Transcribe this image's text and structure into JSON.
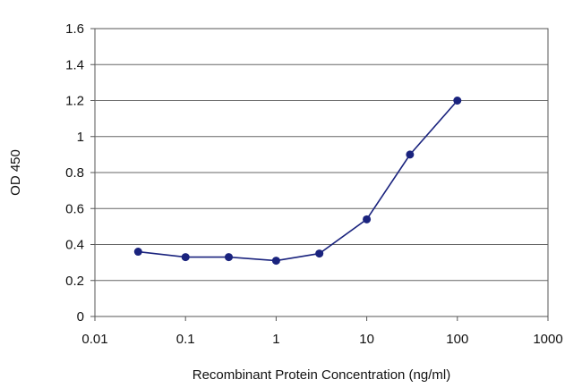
{
  "chart_data": {
    "type": "line",
    "xlabel": "Recombinant Protein Concentration (ng/ml)",
    "ylabel": "OD 450",
    "x_scale": "log",
    "xlim": [
      0.01,
      1000
    ],
    "ylim": [
      0,
      1.6
    ],
    "x_tick_labels": [
      "0.01",
      "0.1",
      "1",
      "10",
      "100",
      "1000"
    ],
    "x_tick_values": [
      0.01,
      0.1,
      1,
      10,
      100,
      1000
    ],
    "y_tick_labels": [
      "0",
      "0.2",
      "0.4",
      "0.6",
      "0.8",
      "1",
      "1.2",
      "1.4",
      "1.6"
    ],
    "y_tick_values": [
      0,
      0.2,
      0.4,
      0.6,
      0.8,
      1,
      1.2,
      1.4,
      1.6
    ],
    "grid": "horizontal",
    "legend": "none",
    "series": [
      {
        "color": "#1a237e",
        "x": [
          0.03,
          0.1,
          0.3,
          1,
          3,
          10,
          30,
          100
        ],
        "y": [
          0.36,
          0.33,
          0.33,
          0.31,
          0.35,
          0.54,
          0.9,
          1.2
        ]
      }
    ]
  }
}
